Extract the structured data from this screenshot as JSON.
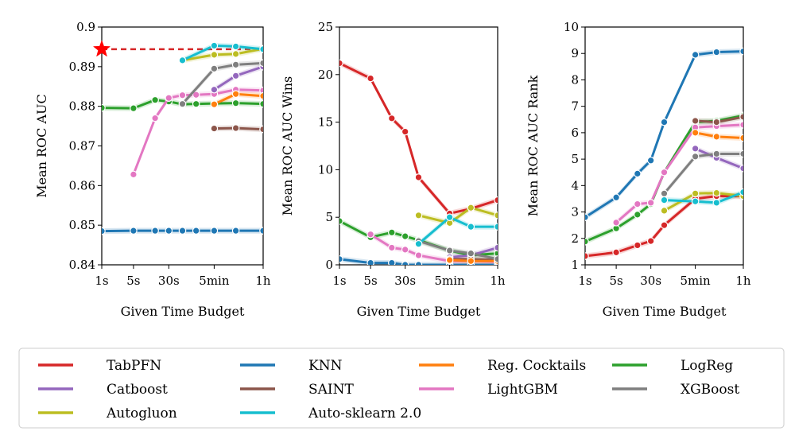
{
  "figure": {
    "legend": {
      "placement": "bottom",
      "entries": [
        {
          "name": "TabPFN",
          "color": "#d62728"
        },
        {
          "name": "KNN",
          "color": "#1f77b4"
        },
        {
          "name": "Reg. Cocktails",
          "color": "#ff7f0e"
        },
        {
          "name": "LogReg",
          "color": "#2ca02c"
        },
        {
          "name": "Catboost",
          "color": "#9467bd"
        },
        {
          "name": "SAINT",
          "color": "#8c564b"
        },
        {
          "name": "LightGBM",
          "color": "#e377c2"
        },
        {
          "name": "XGBoost",
          "color": "#7f7f7f"
        },
        {
          "name": "Autogluon",
          "color": "#bcbd22"
        },
        {
          "name": "Auto-sklearn 2.0",
          "color": "#17becf"
        }
      ]
    }
  },
  "chart_data": [
    {
      "type": "line",
      "xlabel": "Given Time Budget",
      "ylabel": "Mean ROC AUC",
      "x_ticks": [
        "1s",
        "5s",
        "30s",
        "5min",
        "1h"
      ],
      "x": [
        1,
        5,
        15,
        30,
        60,
        120,
        300,
        900,
        3600
      ],
      "ylim": [
        0.84,
        0.9
      ],
      "y_ticks": [
        0.84,
        0.85,
        0.86,
        0.87,
        0.88,
        0.89,
        0.9
      ],
      "tabpfn_marker": {
        "x": 1,
        "y": 0.8944
      },
      "tabpfn_reference_line": {
        "y": 0.8944,
        "x_from": 1,
        "x_to": 3600
      },
      "series": [
        {
          "name": "KNN",
          "values": [
            0.8485,
            0.8486,
            0.8486,
            0.8486,
            0.8486,
            0.8486,
            0.8486,
            0.8486,
            0.8486
          ]
        },
        {
          "name": "LogReg",
          "values": [
            0.8796,
            0.8795,
            0.8816,
            0.8812,
            0.8805,
            0.8806,
            0.8807,
            0.8808,
            0.8806
          ]
        },
        {
          "name": "LightGBM",
          "values": [
            null,
            0.8628,
            0.877,
            0.8821,
            0.8828,
            0.8829,
            0.8831,
            0.8842,
            0.884
          ]
        },
        {
          "name": "SAINT",
          "values": [
            null,
            null,
            null,
            null,
            null,
            null,
            0.8744,
            0.8745,
            0.8742
          ]
        },
        {
          "name": "Reg. Cocktails",
          "values": [
            null,
            null,
            null,
            null,
            null,
            null,
            0.8805,
            0.8831,
            0.8826
          ]
        },
        {
          "name": "Catboost",
          "values": [
            null,
            null,
            null,
            null,
            null,
            null,
            0.8842,
            0.8877,
            0.89
          ]
        },
        {
          "name": "XGBoost",
          "values": [
            null,
            null,
            null,
            null,
            0.8806,
            null,
            0.8895,
            0.8905,
            0.8909
          ]
        },
        {
          "name": "Autogluon",
          "values": [
            null,
            null,
            null,
            null,
            0.8916,
            null,
            0.893,
            0.8932,
            0.8945
          ]
        },
        {
          "name": "Auto-sklearn 2.0",
          "values": [
            null,
            null,
            null,
            null,
            0.8916,
            null,
            0.8953,
            0.8951,
            0.8944
          ]
        }
      ]
    },
    {
      "type": "line",
      "xlabel": "Given Time Budget",
      "ylabel": "Mean ROC AUC Wins",
      "x_ticks": [
        "1s",
        "5s",
        "30s",
        "5min",
        "1h"
      ],
      "x": [
        1,
        5,
        15,
        30,
        60,
        120,
        300,
        900,
        3600
      ],
      "ylim": [
        0,
        25
      ],
      "y_ticks": [
        0,
        5,
        10,
        15,
        20,
        25
      ],
      "series": [
        {
          "name": "TabPFN",
          "values": [
            21.2,
            19.6,
            15.4,
            14.0,
            9.2,
            null,
            5.4,
            5.9,
            6.8
          ]
        },
        {
          "name": "KNN",
          "values": [
            0.6,
            0.2,
            0.2,
            0.0,
            0.0,
            null,
            0.0,
            0.0,
            0.0
          ]
        },
        {
          "name": "LogReg",
          "values": [
            4.6,
            2.9,
            3.4,
            3.0,
            2.6,
            null,
            1.5,
            1.0,
            1.2
          ]
        },
        {
          "name": "LightGBM",
          "values": [
            null,
            3.2,
            1.8,
            1.6,
            1.0,
            null,
            0.4,
            0.4,
            0.3
          ]
        },
        {
          "name": "Catboost",
          "values": [
            null,
            null,
            null,
            null,
            null,
            null,
            0.8,
            1.0,
            1.8
          ]
        },
        {
          "name": "SAINT",
          "values": [
            null,
            null,
            null,
            null,
            null,
            null,
            0.6,
            0.6,
            0.5
          ]
        },
        {
          "name": "Reg. Cocktails",
          "values": [
            null,
            null,
            null,
            null,
            null,
            null,
            0.5,
            0.4,
            0.4
          ]
        },
        {
          "name": "XGBoost",
          "values": [
            null,
            null,
            null,
            null,
            2.5,
            null,
            1.5,
            1.2,
            0.6
          ]
        },
        {
          "name": "Autogluon",
          "values": [
            null,
            null,
            null,
            null,
            5.2,
            null,
            4.4,
            6.0,
            5.2
          ]
        },
        {
          "name": "Auto-sklearn 2.0",
          "values": [
            null,
            null,
            null,
            null,
            2.2,
            null,
            5.0,
            4.0,
            4.0
          ]
        }
      ]
    },
    {
      "type": "line",
      "xlabel": "Given Time Budget",
      "ylabel": "Mean ROC AUC Rank",
      "x_ticks": [
        "1s",
        "5s",
        "30s",
        "5min",
        "1h"
      ],
      "x": [
        1,
        5,
        15,
        30,
        60,
        120,
        300,
        900,
        3600
      ],
      "ylim": [
        1,
        10
      ],
      "y_ticks": [
        1,
        2,
        3,
        4,
        5,
        6,
        7,
        8,
        9,
        10
      ],
      "series": [
        {
          "name": "TabPFN",
          "values": [
            1.33,
            1.47,
            1.74,
            1.9,
            2.5,
            null,
            3.5,
            3.6,
            3.6
          ]
        },
        {
          "name": "KNN",
          "values": [
            2.8,
            3.55,
            4.45,
            4.95,
            6.4,
            null,
            8.95,
            9.05,
            9.08
          ]
        },
        {
          "name": "LogReg",
          "values": [
            1.88,
            2.38,
            2.9,
            3.3,
            4.5,
            null,
            6.4,
            6.45,
            6.65
          ]
        },
        {
          "name": "LightGBM",
          "values": [
            null,
            2.6,
            3.3,
            3.35,
            4.5,
            null,
            6.2,
            6.25,
            6.3
          ]
        },
        {
          "name": "Catboost",
          "values": [
            null,
            null,
            null,
            null,
            null,
            null,
            5.4,
            5.05,
            4.65
          ]
        },
        {
          "name": "SAINT",
          "values": [
            null,
            null,
            null,
            null,
            null,
            null,
            6.45,
            6.4,
            6.6
          ]
        },
        {
          "name": "Reg. Cocktails",
          "values": [
            null,
            null,
            null,
            null,
            null,
            null,
            6.0,
            5.85,
            5.8
          ]
        },
        {
          "name": "XGBoost",
          "values": [
            null,
            null,
            null,
            null,
            3.7,
            null,
            5.1,
            5.2,
            5.2
          ]
        },
        {
          "name": "Autogluon",
          "values": [
            null,
            null,
            null,
            null,
            3.05,
            null,
            3.7,
            3.72,
            3.6
          ]
        },
        {
          "name": "Auto-sklearn 2.0",
          "values": [
            null,
            null,
            null,
            null,
            3.45,
            null,
            3.4,
            3.35,
            3.75
          ]
        }
      ]
    }
  ]
}
